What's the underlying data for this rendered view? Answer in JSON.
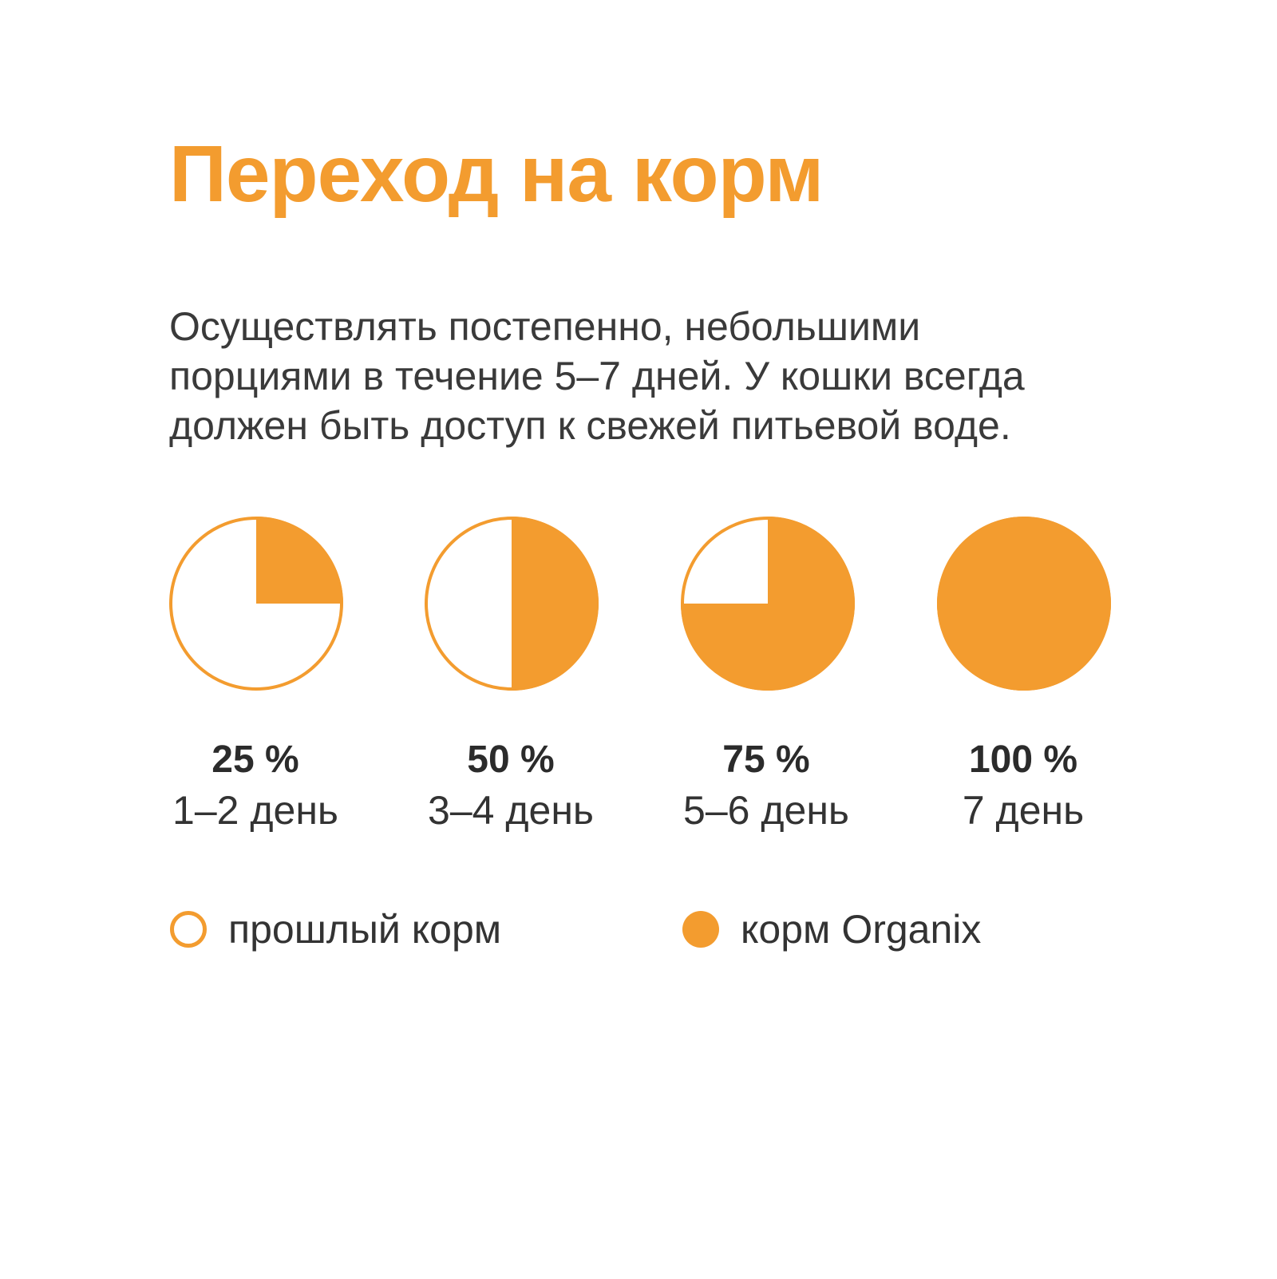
{
  "title": "Переход на корм",
  "description": {
    "lines": [
      "Осуществлять постепенно, небольшими",
      "порциями в течение 5–7 дней. У кошки всегда",
      "должен быть доступ к свежей питьевой воде."
    ]
  },
  "colors": {
    "accent": "#F39C2F",
    "text": "#333333"
  },
  "chart_data": {
    "type": "pie",
    "categories": [
      "1–2 день",
      "3–4 день",
      "5–6 день",
      "7 день"
    ],
    "series": [
      {
        "name": "прошлый корм",
        "values": [
          75,
          50,
          25,
          0
        ]
      },
      {
        "name": "корм Organix",
        "values": [
          25,
          50,
          75,
          100
        ]
      }
    ],
    "data_labels": [
      "25 %",
      "50 %",
      "75 %",
      "100 %"
    ],
    "title": "",
    "legend_position": "bottom"
  },
  "legend": [
    {
      "label": "прошлый корм",
      "style": "outline"
    },
    {
      "label": "корм Organix",
      "style": "filled"
    }
  ]
}
